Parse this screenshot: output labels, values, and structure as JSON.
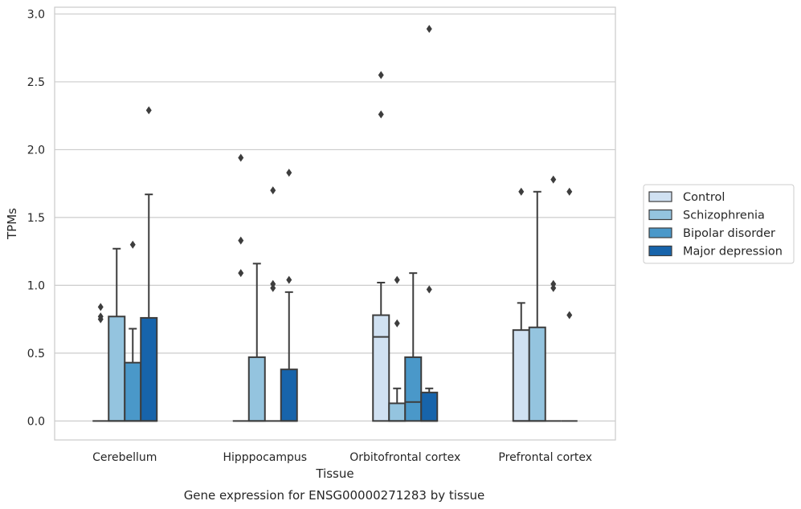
{
  "chart_data": {
    "type": "box",
    "title": "",
    "caption": "Gene expression for ENSG00000271283 by tissue",
    "xlabel": "Tissue",
    "ylabel": "TPMs",
    "ylim": [
      -0.14,
      3.05
    ],
    "yticks": [
      "0.0",
      "0.5",
      "1.0",
      "1.5",
      "2.0",
      "2.5",
      "3.0"
    ],
    "grid": "horizontal",
    "legend_position": "right, outside plot",
    "categories": [
      "Cerebellum",
      "Hipppocampus",
      "Orbitofrontal cortex",
      "Prefrontal cortex"
    ],
    "series": [
      {
        "name": "Control",
        "color": "#d0e1f2",
        "boxes": [
          {
            "q1": 0,
            "median": 0,
            "q3": 0,
            "whisker_low": 0,
            "whisker_high": 0,
            "outliers": [
              0.75,
              0.77,
              0.84
            ]
          },
          {
            "q1": 0,
            "median": 0,
            "q3": 0,
            "whisker_low": 0,
            "whisker_high": 0,
            "outliers": [
              1.09,
              1.33,
              1.94
            ]
          },
          {
            "q1": 0,
            "median": 0.62,
            "q3": 0.78,
            "whisker_low": 0,
            "whisker_high": 1.02,
            "outliers": [
              2.26,
              2.55
            ]
          },
          {
            "q1": 0,
            "median": 0,
            "q3": 0.67,
            "whisker_low": 0,
            "whisker_high": 0.87,
            "outliers": [
              1.69
            ]
          }
        ]
      },
      {
        "name": "Schizophrenia",
        "color": "#94c4df",
        "boxes": [
          {
            "q1": 0,
            "median": 0,
            "q3": 0.77,
            "whisker_low": 0,
            "whisker_high": 1.27,
            "outliers": []
          },
          {
            "q1": 0,
            "median": 0,
            "q3": 0.47,
            "whisker_low": 0,
            "whisker_high": 1.16,
            "outliers": []
          },
          {
            "q1": 0,
            "median": 0,
            "q3": 0.13,
            "whisker_low": 0,
            "whisker_high": 0.24,
            "outliers": [
              0.72,
              1.04
            ]
          },
          {
            "q1": 0,
            "median": 0,
            "q3": 0.69,
            "whisker_low": 0,
            "whisker_high": 1.69,
            "outliers": []
          }
        ]
      },
      {
        "name": "Bipolar disorder",
        "color": "#4a98c9",
        "boxes": [
          {
            "q1": 0,
            "median": 0,
            "q3": 0.43,
            "whisker_low": 0,
            "whisker_high": 0.68,
            "outliers": [
              1.3
            ]
          },
          {
            "q1": 0,
            "median": 0,
            "q3": 0,
            "whisker_low": 0,
            "whisker_high": 0,
            "outliers": [
              0.98,
              1.01,
              1.7
            ]
          },
          {
            "q1": 0,
            "median": 0.14,
            "q3": 0.47,
            "whisker_low": 0,
            "whisker_high": 1.09,
            "outliers": []
          },
          {
            "q1": 0,
            "median": 0,
            "q3": 0,
            "whisker_low": 0,
            "whisker_high": 0,
            "outliers": [
              0.98,
              1.01,
              1.78
            ]
          }
        ]
      },
      {
        "name": "Major depression",
        "color": "#1764ab",
        "boxes": [
          {
            "q1": 0,
            "median": 0,
            "q3": 0.76,
            "whisker_low": 0,
            "whisker_high": 1.67,
            "outliers": [
              2.29
            ]
          },
          {
            "q1": 0,
            "median": 0,
            "q3": 0.38,
            "whisker_low": 0,
            "whisker_high": 0.95,
            "outliers": [
              1.04,
              1.83
            ]
          },
          {
            "q1": 0,
            "median": 0,
            "q3": 0.21,
            "whisker_low": 0,
            "whisker_high": 0.24,
            "outliers": [
              0.97,
              2.89
            ]
          },
          {
            "q1": 0,
            "median": 0,
            "q3": 0,
            "whisker_low": 0,
            "whisker_high": 0,
            "outliers": [
              0.78,
              1.69
            ]
          }
        ]
      }
    ]
  }
}
